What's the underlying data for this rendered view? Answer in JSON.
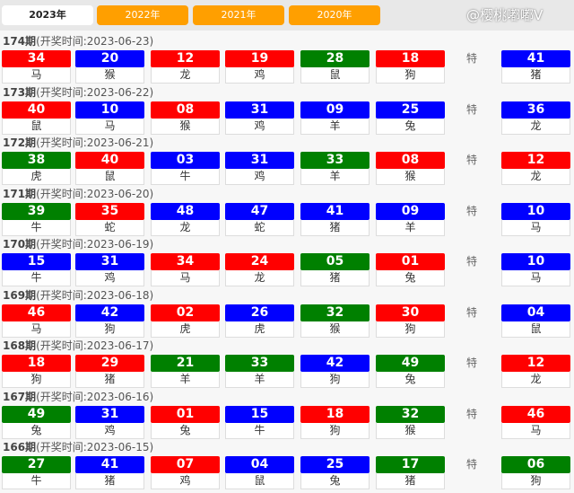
{
  "tabs": [
    {
      "label": "2023年",
      "active": true
    },
    {
      "label": "2022年"
    },
    {
      "label": "2021年"
    },
    {
      "label": "2020年"
    }
  ],
  "special_label": "特",
  "colors": {
    "red": "#ff0000",
    "blue": "#0000ff",
    "green": "#008000"
  },
  "watermark": "@樱桃嘟嘟V",
  "draws": [
    {
      "period": "174期",
      "time": "(开奖时间:2023-06-23)",
      "balls": [
        [
          "34",
          "马",
          "red"
        ],
        [
          "20",
          "猴",
          "blue"
        ],
        [
          "12",
          "龙",
          "red"
        ],
        [
          "19",
          "鸡",
          "red"
        ],
        [
          "28",
          "鼠",
          "green"
        ],
        [
          "18",
          "狗",
          "red"
        ]
      ],
      "special": [
        "41",
        "猪",
        "blue"
      ]
    },
    {
      "period": "173期",
      "time": "(开奖时间:2023-06-22)",
      "balls": [
        [
          "40",
          "鼠",
          "red"
        ],
        [
          "10",
          "马",
          "blue"
        ],
        [
          "08",
          "猴",
          "red"
        ],
        [
          "31",
          "鸡",
          "blue"
        ],
        [
          "09",
          "羊",
          "blue"
        ],
        [
          "25",
          "兔",
          "blue"
        ]
      ],
      "special": [
        "36",
        "龙",
        "blue"
      ]
    },
    {
      "period": "172期",
      "time": "(开奖时间:2023-06-21)",
      "balls": [
        [
          "38",
          "虎",
          "green"
        ],
        [
          "40",
          "鼠",
          "red"
        ],
        [
          "03",
          "牛",
          "blue"
        ],
        [
          "31",
          "鸡",
          "blue"
        ],
        [
          "33",
          "羊",
          "green"
        ],
        [
          "08",
          "猴",
          "red"
        ]
      ],
      "special": [
        "12",
        "龙",
        "red"
      ]
    },
    {
      "period": "171期",
      "time": "(开奖时间:2023-06-20)",
      "balls": [
        [
          "39",
          "牛",
          "green"
        ],
        [
          "35",
          "蛇",
          "red"
        ],
        [
          "48",
          "龙",
          "blue"
        ],
        [
          "47",
          "蛇",
          "blue"
        ],
        [
          "41",
          "猪",
          "blue"
        ],
        [
          "09",
          "羊",
          "blue"
        ]
      ],
      "special": [
        "10",
        "马",
        "blue"
      ]
    },
    {
      "period": "170期",
      "time": "(开奖时间:2023-06-19)",
      "balls": [
        [
          "15",
          "牛",
          "blue"
        ],
        [
          "31",
          "鸡",
          "blue"
        ],
        [
          "34",
          "马",
          "red"
        ],
        [
          "24",
          "龙",
          "red"
        ],
        [
          "05",
          "猪",
          "green"
        ],
        [
          "01",
          "兔",
          "red"
        ]
      ],
      "special": [
        "10",
        "马",
        "blue"
      ]
    },
    {
      "period": "169期",
      "time": "(开奖时间:2023-06-18)",
      "balls": [
        [
          "46",
          "马",
          "red"
        ],
        [
          "42",
          "狗",
          "blue"
        ],
        [
          "02",
          "虎",
          "red"
        ],
        [
          "26",
          "虎",
          "blue"
        ],
        [
          "32",
          "猴",
          "green"
        ],
        [
          "30",
          "狗",
          "red"
        ]
      ],
      "special": [
        "04",
        "鼠",
        "blue"
      ]
    },
    {
      "period": "168期",
      "time": "(开奖时间:2023-06-17)",
      "balls": [
        [
          "18",
          "狗",
          "red"
        ],
        [
          "29",
          "猪",
          "red"
        ],
        [
          "21",
          "羊",
          "green"
        ],
        [
          "33",
          "羊",
          "green"
        ],
        [
          "42",
          "狗",
          "blue"
        ],
        [
          "49",
          "兔",
          "green"
        ]
      ],
      "special": [
        "12",
        "龙",
        "red"
      ]
    },
    {
      "period": "167期",
      "time": "(开奖时间:2023-06-16)",
      "balls": [
        [
          "49",
          "兔",
          "green"
        ],
        [
          "31",
          "鸡",
          "blue"
        ],
        [
          "01",
          "兔",
          "red"
        ],
        [
          "15",
          "牛",
          "blue"
        ],
        [
          "18",
          "狗",
          "red"
        ],
        [
          "32",
          "猴",
          "green"
        ]
      ],
      "special": [
        "46",
        "马",
        "red"
      ]
    },
    {
      "period": "166期",
      "time": "(开奖时间:2023-06-15)",
      "balls": [
        [
          "27",
          "牛",
          "green"
        ],
        [
          "41",
          "猪",
          "blue"
        ],
        [
          "07",
          "鸡",
          "red"
        ],
        [
          "04",
          "鼠",
          "blue"
        ],
        [
          "25",
          "兔",
          "blue"
        ],
        [
          "17",
          "猪",
          "green"
        ]
      ],
      "special": [
        "06",
        "狗",
        "green"
      ]
    }
  ]
}
